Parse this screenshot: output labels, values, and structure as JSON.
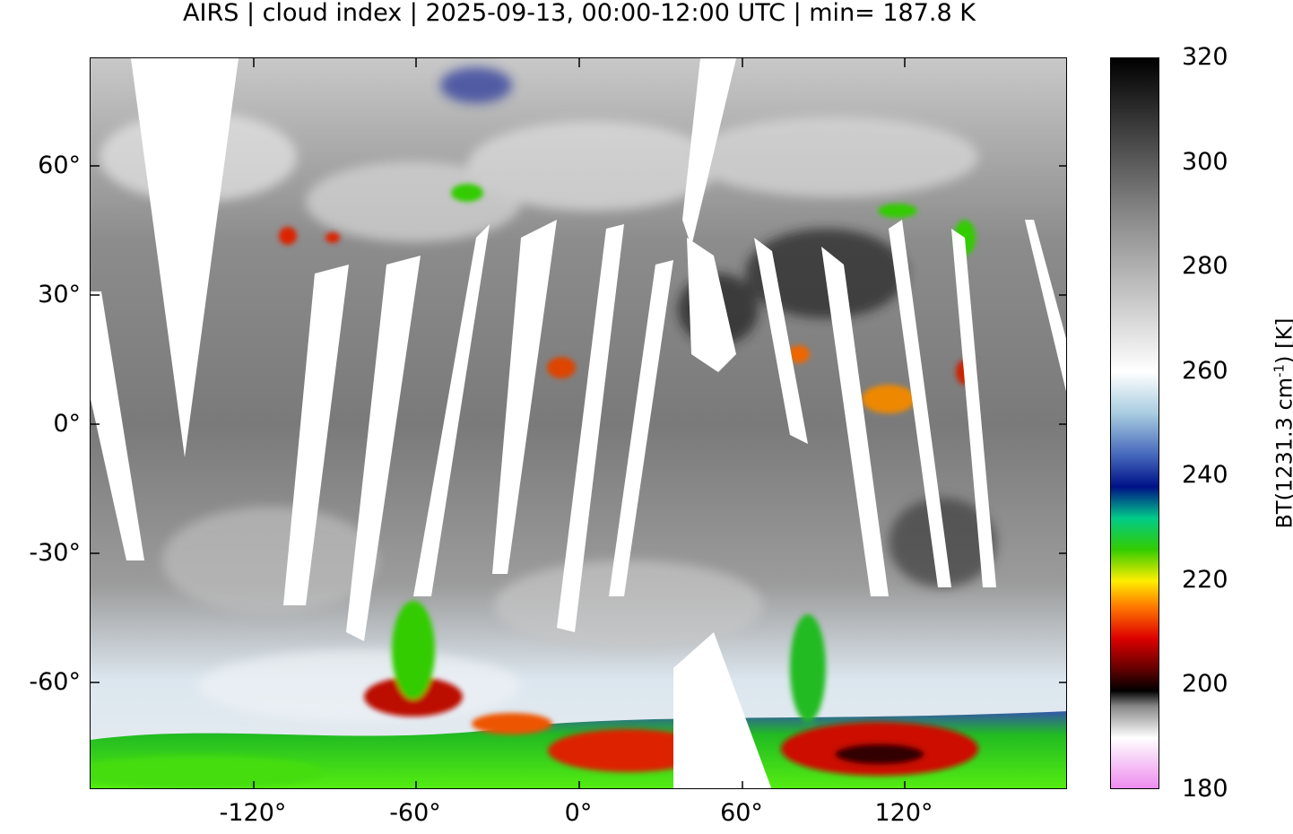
{
  "title": "AIRS | cloud index | 2025-09-13, 00:00-12:00 UTC | min= 187.8 K",
  "map": {
    "lon_range": [
      -180,
      180
    ],
    "lat_range": [
      -85,
      85
    ],
    "y_ticks": [
      {
        "value": 60,
        "label": "60°"
      },
      {
        "value": 30,
        "label": "30°"
      },
      {
        "value": 0,
        "label": "0°"
      },
      {
        "value": -30,
        "label": "-30°"
      },
      {
        "value": -60,
        "label": "-60°"
      }
    ],
    "x_ticks": [
      {
        "value": -120,
        "label": "-120°"
      },
      {
        "value": -60,
        "label": "-60°"
      },
      {
        "value": 0,
        "label": "0°"
      },
      {
        "value": 60,
        "label": "60°"
      },
      {
        "value": 120,
        "label": "120°"
      }
    ],
    "swath_gap_color": "#ffffff",
    "base_gray": "#9a9a9a"
  },
  "colorbar": {
    "title_main": "BT(1231.3 cm",
    "title_sup": "-1",
    "title_end": ") [K]",
    "range": [
      180,
      320
    ],
    "tick_labels": [
      "320",
      "300",
      "280",
      "260",
      "240",
      "220",
      "200",
      "180"
    ],
    "stops": [
      {
        "value": 180,
        "color": "#ee88ee"
      },
      {
        "value": 186,
        "color": "#f7d0f7"
      },
      {
        "value": 190,
        "color": "#ffffff"
      },
      {
        "value": 196,
        "color": "#888888"
      },
      {
        "value": 199,
        "color": "#000000"
      },
      {
        "value": 203,
        "color": "#600000"
      },
      {
        "value": 209,
        "color": "#dd0000"
      },
      {
        "value": 215,
        "color": "#ff7700"
      },
      {
        "value": 220,
        "color": "#ffee00"
      },
      {
        "value": 226,
        "color": "#33cc00"
      },
      {
        "value": 232,
        "color": "#00cc88"
      },
      {
        "value": 238,
        "color": "#001188"
      },
      {
        "value": 244,
        "color": "#4466bb"
      },
      {
        "value": 252,
        "color": "#a8cce0"
      },
      {
        "value": 260,
        "color": "#ffffff"
      },
      {
        "value": 290,
        "color": "#888888"
      },
      {
        "value": 320,
        "color": "#000000"
      }
    ]
  }
}
